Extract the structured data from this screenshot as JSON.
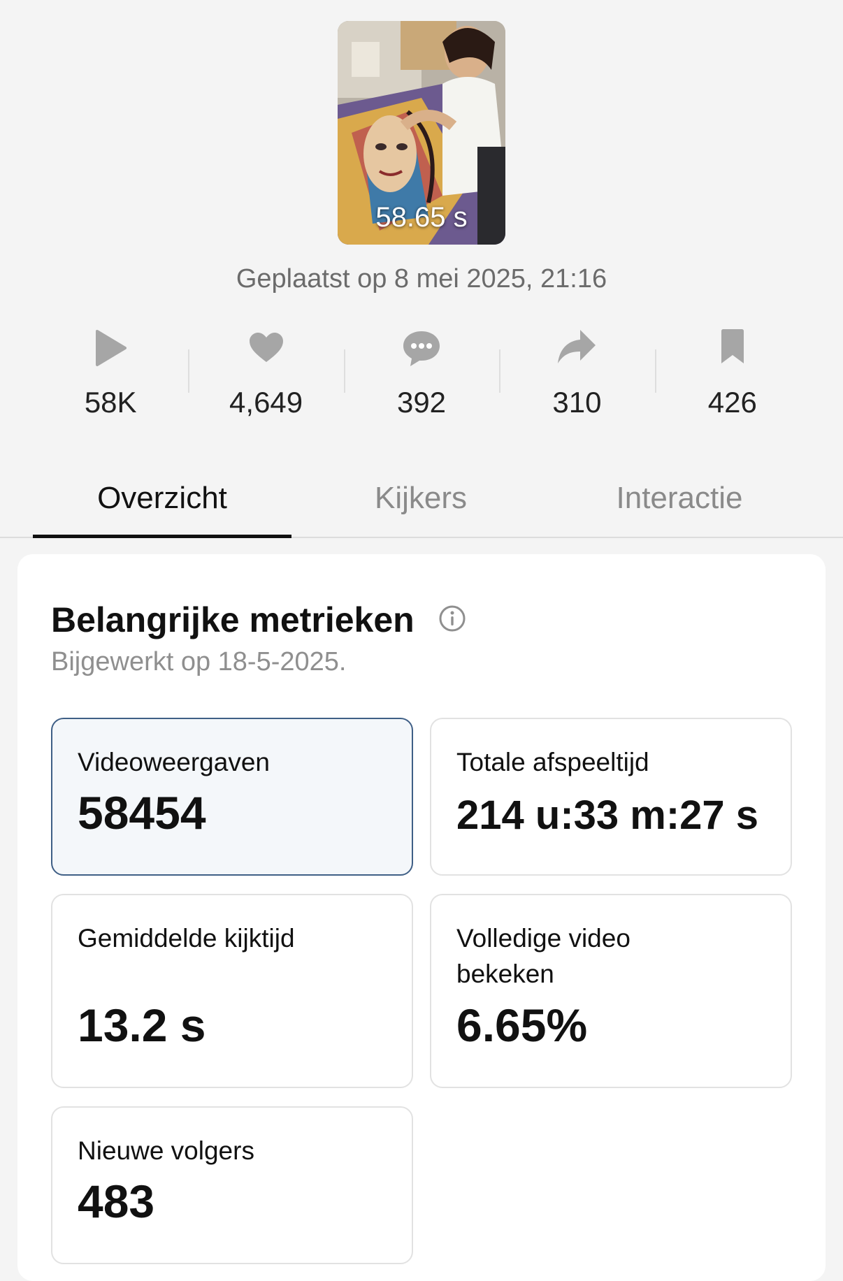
{
  "video": {
    "duration": "58.65 s",
    "posted": "Geplaatst op 8 mei 2025, 21:16"
  },
  "stats": [
    {
      "icon": "play-icon",
      "value": "58K"
    },
    {
      "icon": "heart-icon",
      "value": "4,649"
    },
    {
      "icon": "comment-icon",
      "value": "392"
    },
    {
      "icon": "share-icon",
      "value": "310"
    },
    {
      "icon": "bookmark-icon",
      "value": "426"
    }
  ],
  "tabs": [
    "Overzicht",
    "Kijkers",
    "Interactie"
  ],
  "metrics_card": {
    "title": "Belangrijke metrieken",
    "updated": "Bijgewerkt op 18-5-2025.",
    "items": [
      {
        "label": "Videoweergaven",
        "value": "58454"
      },
      {
        "label": "Totale afspeeltijd",
        "value": "214 u:33 m:27 s"
      },
      {
        "label": "Gemiddelde kijktijd",
        "value": "13.2 s"
      },
      {
        "label": "Volledige video bekeken",
        "value": "6.65%"
      },
      {
        "label": "Nieuwe volgers",
        "value": "483"
      }
    ]
  },
  "colors": {
    "background": "#f4f4f4",
    "icon_gray": "#a6a6a6",
    "selected_border": "#3f5f86"
  }
}
